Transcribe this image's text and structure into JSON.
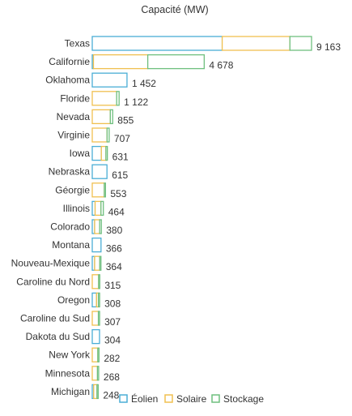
{
  "chart_data": {
    "type": "bar",
    "orientation": "horizontal",
    "stacked": true,
    "title": "Capacité (MW)",
    "xlabel": "",
    "ylabel": "",
    "xlim": [
      0,
      9163
    ],
    "grid": false,
    "legend_placement": "bottom",
    "categories": [
      "Texas",
      "Californie",
      "Oklahoma",
      "Floride",
      "Nevada",
      "Virginie",
      "Iowa",
      "Nebraska",
      "Géorgie",
      "Illinois",
      "Colorado",
      "Montana",
      "Nouveau-Mexique",
      "Caroline du Nord",
      "Oregon",
      "Caroline du Sud",
      "Dakota du Sud",
      "New York",
      "Minnesota",
      "Michigan"
    ],
    "totals": [
      9163,
      4678,
      1452,
      1122,
      855,
      707,
      631,
      615,
      553,
      464,
      380,
      366,
      364,
      315,
      308,
      307,
      304,
      282,
      268,
      248
    ],
    "total_labels": [
      "9 163",
      "4 678",
      "1 452",
      "1 122",
      "855",
      "707",
      "631",
      "615",
      "553",
      "464",
      "380",
      "366",
      "364",
      "315",
      "308",
      "307",
      "304",
      "282",
      "268",
      "248"
    ],
    "series": [
      {
        "name": "Éolien",
        "color": "#4aaed6",
        "values": [
          5430,
          50,
          1452,
          0,
          0,
          0,
          380,
          615,
          0,
          120,
          100,
          366,
          100,
          0,
          180,
          0,
          304,
          0,
          0,
          60
        ]
      },
      {
        "name": "Solaire",
        "color": "#f0c050",
        "values": [
          2830,
          2270,
          0,
          1020,
          755,
          620,
          191,
          0,
          503,
          244,
          210,
          0,
          214,
          265,
          78,
          257,
          0,
          232,
          218,
          138
        ]
      },
      {
        "name": "Stockage",
        "color": "#6fbf7f",
        "values": [
          903,
          2358,
          0,
          102,
          100,
          87,
          60,
          0,
          50,
          100,
          70,
          0,
          50,
          50,
          50,
          50,
          0,
          50,
          50,
          50
        ]
      }
    ]
  }
}
